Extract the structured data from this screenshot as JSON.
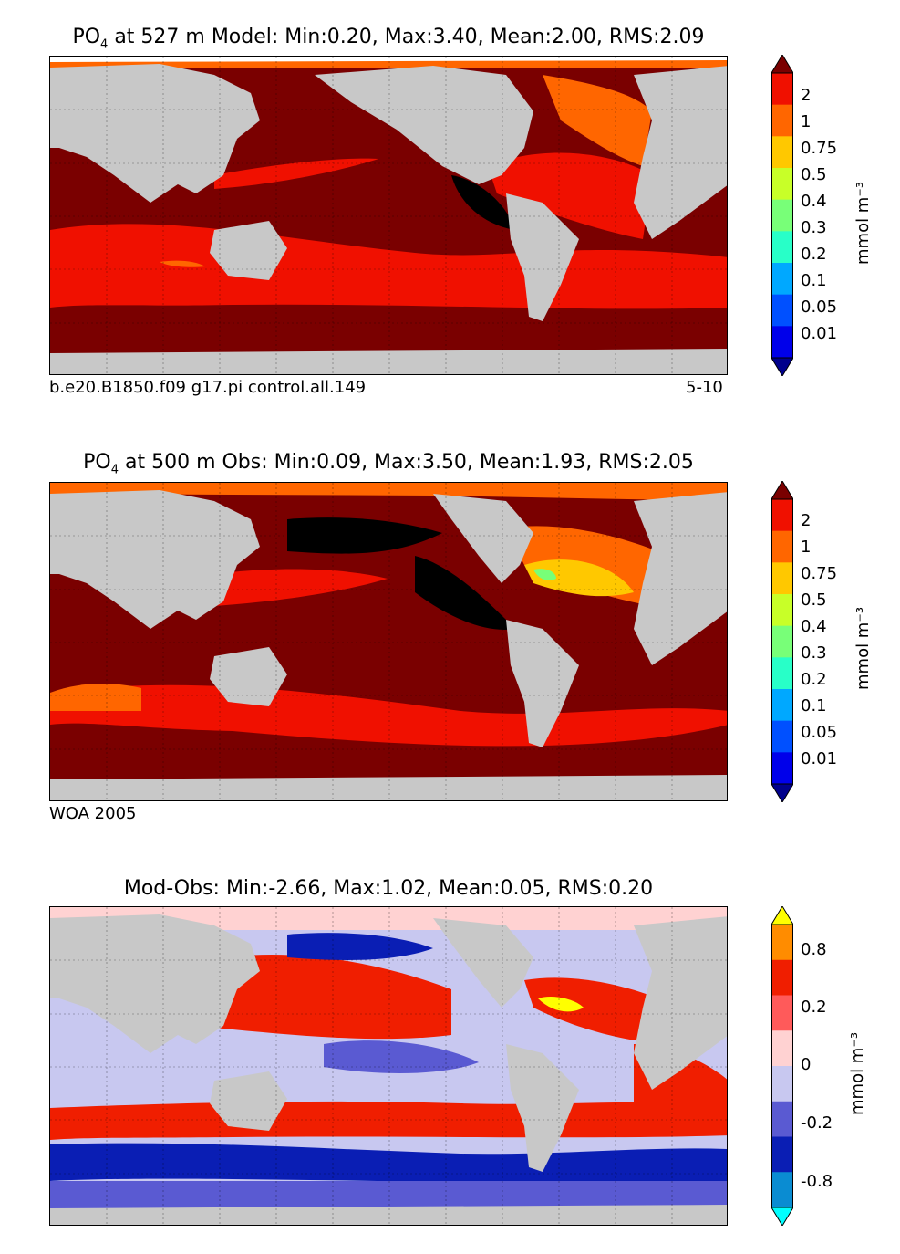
{
  "panels": [
    {
      "title_prefix": "PO",
      "title_sub": "4",
      "title_rest": " at 527 m Model: Min:0.20, Max:3.40, Mean:2.00, RMS:2.09",
      "footer_left": "b.e20.B1850.f09 g17.pi control.all.149",
      "footer_right": "5-10",
      "units": "mmol m⁻³",
      "colorbar_ticks": [
        "2",
        "1",
        "0.75",
        "0.5",
        "0.4",
        "0.3",
        "0.2",
        "0.1",
        "0.05",
        "0.01"
      ],
      "colorbar_colors": [
        "#7a0000",
        "#f01000",
        "#ff6600",
        "#ffc800",
        "#c8ff28",
        "#78ff78",
        "#28ffc8",
        "#00a8ff",
        "#0050ff",
        "#0000ea",
        "#00008c"
      ]
    },
    {
      "title_prefix": "PO",
      "title_sub": "4",
      "title_rest": " at 500 m Obs: Min:0.09, Max:3.50, Mean:1.93, RMS:2.05",
      "footer_left": "WOA 2005",
      "footer_right": "",
      "units": "mmol m⁻³",
      "colorbar_ticks": [
        "2",
        "1",
        "0.75",
        "0.5",
        "0.4",
        "0.3",
        "0.2",
        "0.1",
        "0.05",
        "0.01"
      ],
      "colorbar_colors": [
        "#7a0000",
        "#f01000",
        "#ff6600",
        "#ffc800",
        "#c8ff28",
        "#78ff78",
        "#28ffc8",
        "#00a8ff",
        "#0050ff",
        "#0000ea",
        "#00008c"
      ]
    },
    {
      "title_prefix": "Mod-Obs: Min:-2.66, Max:1.02, Mean:0.05, RMS:0.20",
      "title_sub": "",
      "title_rest": "",
      "footer_left": "",
      "footer_right": "",
      "units": "mmol m⁻³",
      "colorbar_ticks": [
        "0.8",
        "0.2",
        "0",
        "-0.2",
        "-0.8"
      ],
      "colorbar_colors": [
        "#ffff00",
        "#ff8c00",
        "#f01e00",
        "#ff5a5a",
        "#ffd2d2",
        "#c8c8f0",
        "#5a5ad2",
        "#0a1eb4",
        "#0a8cd2",
        "#00ffff"
      ]
    }
  ],
  "colors": {
    "land": "#c8c8c8",
    "sea_ice_white": "#ffffff",
    "extreme_high": "#000000"
  }
}
